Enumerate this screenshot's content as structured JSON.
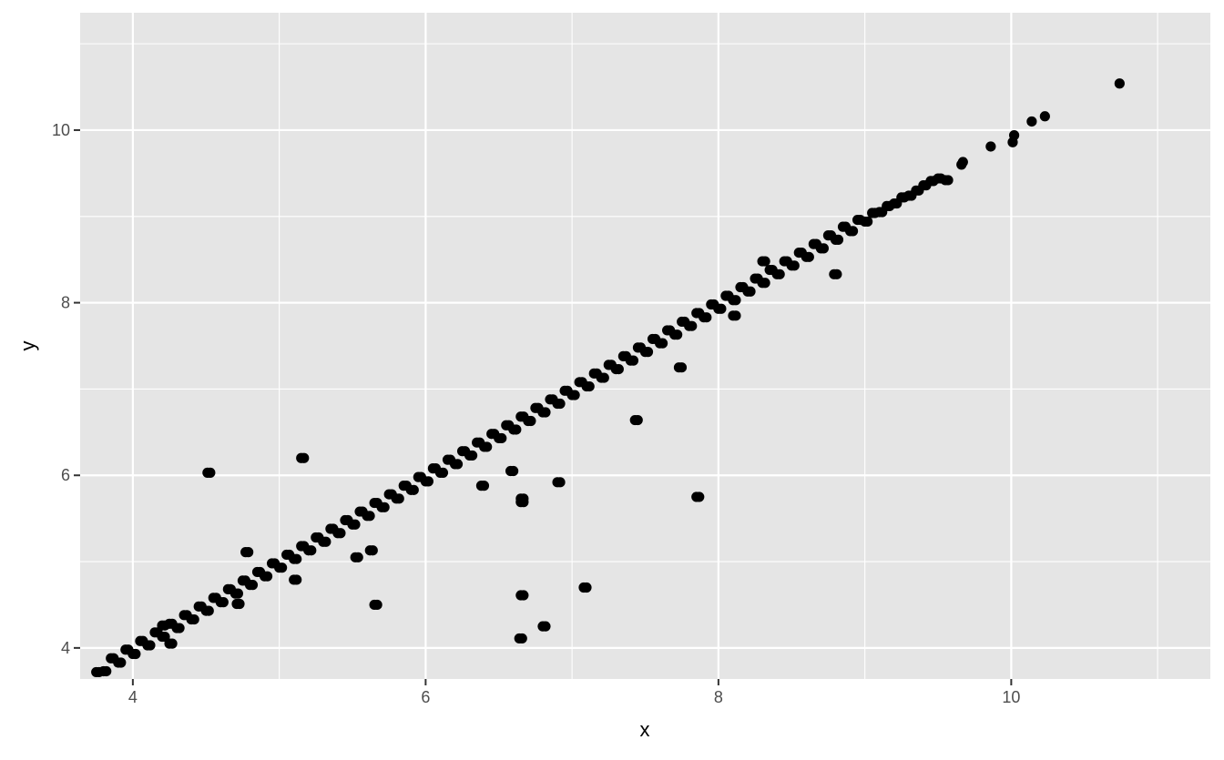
{
  "chart_data": {
    "type": "scatter",
    "title": "",
    "xlabel": "x",
    "ylabel": "y",
    "xlim": [
      3.64,
      11.36
    ],
    "ylim": [
      3.64,
      11.36
    ],
    "xticks": [
      4,
      6,
      8,
      10
    ],
    "yticks": [
      4,
      6,
      8,
      10
    ],
    "xtick_labels": [
      "4",
      "6",
      "8",
      "10"
    ],
    "ytick_labels": [
      "4",
      "6",
      "8",
      "10"
    ],
    "minor_x": [
      5,
      7,
      9,
      11
    ],
    "minor_y": [
      5,
      7,
      9,
      11
    ],
    "grid": true,
    "colors": {
      "panel": "#e5e5e5",
      "grid": "#ffffff",
      "point": "#000000",
      "tick_text": "#4d4d4d",
      "axis_title": "#000000"
    },
    "series": [
      {
        "points": [
          [
            3.75,
            3.72
          ],
          [
            3.8,
            3.73
          ],
          [
            3.85,
            3.88
          ],
          [
            3.9,
            3.83
          ],
          [
            3.95,
            3.98
          ],
          [
            4.0,
            3.93
          ],
          [
            4.05,
            4.08
          ],
          [
            4.1,
            4.03
          ],
          [
            4.15,
            4.18
          ],
          [
            4.2,
            4.13
          ],
          [
            4.25,
            4.28
          ],
          [
            4.3,
            4.23
          ],
          [
            4.35,
            4.38
          ],
          [
            4.4,
            4.33
          ],
          [
            4.45,
            4.48
          ],
          [
            4.5,
            4.43
          ],
          [
            4.55,
            4.58
          ],
          [
            4.6,
            4.53
          ],
          [
            4.65,
            4.68
          ],
          [
            4.7,
            4.63
          ],
          [
            4.75,
            4.78
          ],
          [
            4.8,
            4.73
          ],
          [
            4.85,
            4.88
          ],
          [
            4.9,
            4.83
          ],
          [
            4.95,
            4.98
          ],
          [
            5.0,
            4.93
          ],
          [
            5.05,
            5.08
          ],
          [
            5.1,
            5.03
          ],
          [
            5.15,
            5.18
          ],
          [
            5.2,
            5.13
          ],
          [
            5.25,
            5.28
          ],
          [
            5.3,
            5.23
          ],
          [
            5.35,
            5.38
          ],
          [
            5.4,
            5.33
          ],
          [
            5.45,
            5.48
          ],
          [
            5.5,
            5.43
          ],
          [
            5.55,
            5.58
          ],
          [
            5.6,
            5.53
          ],
          [
            5.65,
            5.68
          ],
          [
            5.7,
            5.63
          ],
          [
            5.75,
            5.78
          ],
          [
            5.8,
            5.73
          ],
          [
            5.85,
            5.88
          ],
          [
            5.9,
            5.83
          ],
          [
            5.95,
            5.98
          ],
          [
            6.0,
            5.93
          ],
          [
            6.05,
            6.08
          ],
          [
            6.1,
            6.03
          ],
          [
            6.15,
            6.18
          ],
          [
            6.2,
            6.13
          ],
          [
            6.25,
            6.28
          ],
          [
            6.3,
            6.23
          ],
          [
            6.35,
            6.38
          ],
          [
            6.4,
            6.33
          ],
          [
            6.45,
            6.48
          ],
          [
            6.5,
            6.43
          ],
          [
            6.55,
            6.58
          ],
          [
            6.6,
            6.53
          ],
          [
            6.65,
            6.68
          ],
          [
            6.7,
            6.63
          ],
          [
            6.75,
            6.78
          ],
          [
            6.8,
            6.73
          ],
          [
            6.85,
            6.88
          ],
          [
            6.9,
            6.83
          ],
          [
            6.95,
            6.98
          ],
          [
            7.0,
            6.93
          ],
          [
            7.05,
            7.08
          ],
          [
            7.1,
            7.03
          ],
          [
            7.15,
            7.18
          ],
          [
            7.2,
            7.13
          ],
          [
            7.25,
            7.28
          ],
          [
            7.3,
            7.23
          ],
          [
            7.35,
            7.38
          ],
          [
            7.4,
            7.33
          ],
          [
            7.45,
            7.48
          ],
          [
            7.5,
            7.43
          ],
          [
            7.55,
            7.58
          ],
          [
            7.6,
            7.53
          ],
          [
            7.65,
            7.68
          ],
          [
            7.7,
            7.63
          ],
          [
            7.75,
            7.78
          ],
          [
            7.8,
            7.73
          ],
          [
            7.85,
            7.88
          ],
          [
            7.9,
            7.83
          ],
          [
            7.95,
            7.98
          ],
          [
            8.0,
            7.93
          ],
          [
            8.05,
            8.08
          ],
          [
            8.1,
            8.03
          ],
          [
            8.15,
            8.18
          ],
          [
            8.2,
            8.13
          ],
          [
            8.25,
            8.28
          ],
          [
            8.3,
            8.23
          ],
          [
            8.35,
            8.38
          ],
          [
            8.4,
            8.33
          ],
          [
            8.45,
            8.48
          ],
          [
            8.5,
            8.43
          ],
          [
            8.55,
            8.58
          ],
          [
            8.6,
            8.53
          ],
          [
            8.65,
            8.68
          ],
          [
            8.7,
            8.63
          ],
          [
            8.75,
            8.78
          ],
          [
            8.8,
            8.73
          ],
          [
            8.85,
            8.88
          ],
          [
            8.9,
            8.83
          ],
          [
            8.95,
            8.96
          ],
          [
            9.0,
            8.94
          ],
          [
            9.05,
            9.04
          ],
          [
            9.1,
            9.05
          ],
          [
            9.15,
            9.12
          ],
          [
            9.2,
            9.15
          ],
          [
            9.25,
            9.22
          ],
          [
            9.3,
            9.24
          ],
          [
            9.35,
            9.3
          ],
          [
            9.4,
            9.36
          ],
          [
            9.45,
            9.41
          ],
          [
            9.5,
            9.44
          ],
          [
            9.55,
            9.42
          ],
          [
            9.66,
            9.6
          ],
          [
            9.67,
            9.63
          ],
          [
            9.86,
            9.81
          ],
          [
            10.01,
            9.86
          ],
          [
            10.02,
            9.94
          ],
          [
            10.14,
            10.1
          ],
          [
            10.23,
            10.16
          ],
          [
            10.74,
            10.54
          ],
          [
            4.51,
            6.03
          ],
          [
            5.15,
            6.2
          ],
          [
            4.77,
            5.11
          ],
          [
            4.71,
            4.51
          ],
          [
            5.1,
            4.79
          ],
          [
            5.65,
            4.5
          ],
          [
            5.52,
            5.05
          ],
          [
            5.62,
            5.13
          ],
          [
            6.58,
            6.05
          ],
          [
            6.65,
            5.73
          ],
          [
            6.65,
            5.69
          ],
          [
            6.9,
            5.92
          ],
          [
            6.38,
            5.88
          ],
          [
            6.65,
            4.61
          ],
          [
            6.64,
            4.11
          ],
          [
            6.8,
            4.25
          ],
          [
            7.08,
            4.7
          ],
          [
            7.43,
            6.64
          ],
          [
            7.73,
            7.25
          ],
          [
            7.85,
            5.75
          ],
          [
            8.79,
            8.33
          ],
          [
            8.1,
            7.85
          ],
          [
            4.25,
            4.05
          ],
          [
            4.2,
            4.26
          ],
          [
            8.3,
            8.48
          ]
        ]
      }
    ]
  }
}
